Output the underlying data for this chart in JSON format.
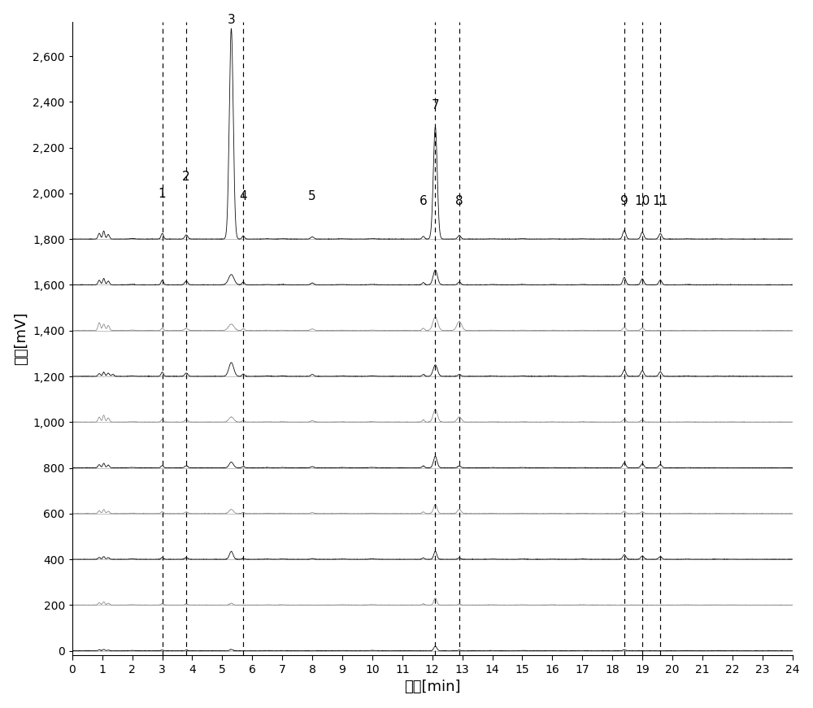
{
  "xlabel": "时间[min]",
  "ylabel": "信号[mV]",
  "xlim": [
    0,
    24
  ],
  "ylim": [
    -20,
    2750
  ],
  "yticks": [
    0,
    200,
    400,
    600,
    800,
    1000,
    1200,
    1400,
    1600,
    1800,
    2000,
    2200,
    2400,
    2600
  ],
  "xticks": [
    0,
    1,
    2,
    3,
    4,
    5,
    6,
    7,
    8,
    9,
    10,
    11,
    12,
    13,
    14,
    15,
    16,
    17,
    18,
    19,
    20,
    21,
    22,
    23,
    24
  ],
  "peak_positions_x": [
    3.0,
    3.8,
    5.3,
    5.7,
    8.0,
    11.7,
    12.1,
    12.9,
    18.4,
    19.0,
    19.6
  ],
  "peak_labels": [
    "1",
    "2",
    "3",
    "4",
    "5",
    "6",
    "7",
    "8",
    "9",
    "10",
    "11"
  ],
  "dashed_line_positions": [
    3.0,
    3.8,
    5.7,
    12.1,
    12.9,
    18.4,
    19.0,
    19.6
  ],
  "num_traces": 10,
  "trace_offsets": [
    0,
    200,
    400,
    600,
    800,
    1000,
    1200,
    1400,
    1600,
    1800
  ],
  "trace_colors": [
    "#000000",
    "#888888",
    "#000000",
    "#888888",
    "#000000",
    "#888888",
    "#000000",
    "#888888",
    "#000000",
    "#000000"
  ],
  "figsize": [
    10.0,
    8.71
  ],
  "dpi": 100,
  "background_color": "#ffffff",
  "xlabel_fontsize": 13,
  "ylabel_fontsize": 13,
  "tick_fontsize": 10,
  "peak_label_fontsize": 11
}
